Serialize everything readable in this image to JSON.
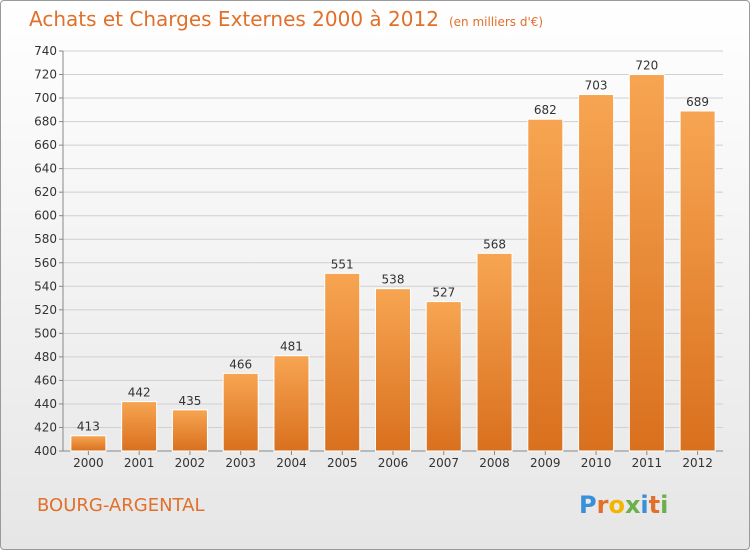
{
  "header": {
    "title": "Achats et Charges Externes 2000 à 2012",
    "unit": "(en milliers d'€)"
  },
  "footer": {
    "town": "BOURG-ARGENTAL",
    "logo_letters": [
      "P",
      "r",
      "o",
      "x",
      "i",
      "t",
      "i"
    ],
    "logo_colors": [
      "#3a8fd9",
      "#e0702a",
      "#f2b600",
      "#6ab04c",
      "#3a8fd9",
      "#e0702a",
      "#6ab04c"
    ]
  },
  "colors": {
    "bar_top": "#f7a552",
    "bar_bottom": "#d9701e",
    "grid": "#cfcfcf",
    "text": "#333333",
    "accent": "#e0702a"
  },
  "chart_data": {
    "type": "bar",
    "categories": [
      "2000",
      "2001",
      "2002",
      "2003",
      "2004",
      "2005",
      "2006",
      "2007",
      "2008",
      "2009",
      "2010",
      "2011",
      "2012"
    ],
    "values": [
      413,
      442,
      435,
      466,
      481,
      551,
      538,
      527,
      568,
      682,
      703,
      720,
      689
    ],
    "ylim": [
      400,
      740
    ],
    "yticks": [
      400,
      420,
      440,
      460,
      480,
      500,
      520,
      540,
      560,
      580,
      600,
      620,
      640,
      660,
      680,
      700,
      720,
      740
    ],
    "grid": true,
    "data_labels": true
  }
}
